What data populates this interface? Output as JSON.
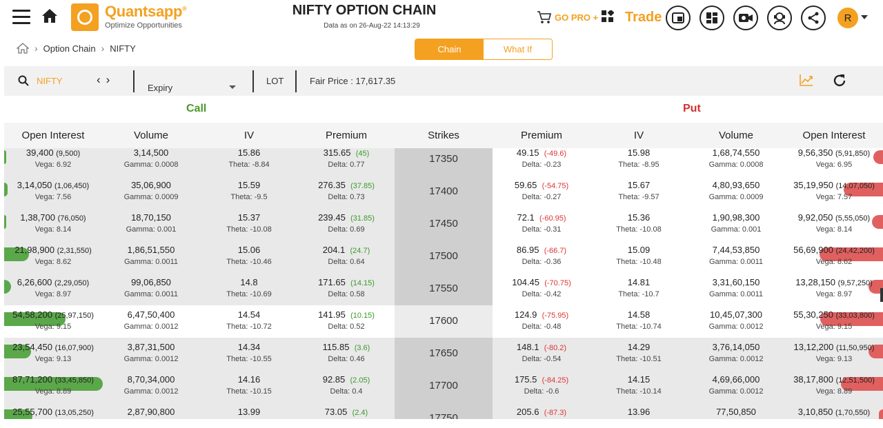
{
  "header": {
    "brand": "Quantsapp",
    "brand_reg": "®",
    "tagline": "Optimize Opportunities",
    "title": "NIFTY OPTION CHAIN",
    "data_as_of": "Data as on 26-Aug-22 14:13:29",
    "gopro": "GO PRO +",
    "trade": "Trade",
    "avatar_letter": "R"
  },
  "breadcrumb": {
    "items": [
      "Option Chain",
      "NIFTY"
    ]
  },
  "view_toggle": {
    "active": "Chain",
    "inactive": "What If"
  },
  "filters": {
    "symbol": "NIFTY",
    "expiry_label": "Expiry",
    "lot_label": "LOT",
    "fair_price": "Fair Price : 17,617.35"
  },
  "sides": {
    "call": "Call",
    "put": "Put"
  },
  "colors": {
    "accent": "#f4a020",
    "call_green": "#5aa84a",
    "put_red": "#e06060",
    "call_label": "#4a9a2a",
    "put_label": "#d33030"
  },
  "columns": {
    "c_oi": "Open Interest",
    "c_vol": "Volume",
    "c_iv": "IV",
    "c_prem": "Premium",
    "strikes": "Strikes",
    "p_prem": "Premium",
    "p_iv": "IV",
    "p_vol": "Volume",
    "p_oi": "Open Interest"
  },
  "rows": [
    {
      "strike": "17350",
      "atm": false,
      "c_oi": "39,400",
      "c_oi_chg": "(9,500)",
      "c_vega": "Vega: 6.92",
      "c_vol": "3,14,500",
      "c_gamma": "Gamma: 0.0008",
      "c_iv": "15.86",
      "c_theta": "Theta: -8.84",
      "c_prem": "315.65",
      "c_prem_chg": "(45)",
      "c_delta": "Delta: 0.77",
      "c_bar": 0.005,
      "p_prem": "49.15",
      "p_prem_chg": "(-49.6)",
      "p_delta": "Delta: -0.23",
      "p_iv": "15.98",
      "p_theta": "Theta: -8.95",
      "p_vol": "1,68,74,550",
      "p_gamma": "Gamma: 0.0008",
      "p_oi": "9,56,350",
      "p_oi_chg": "(5,91,850)",
      "p_vega": "Vega: 6.95",
      "p_bar": 0.1
    },
    {
      "strike": "17400",
      "atm": false,
      "c_oi": "3,14,050",
      "c_oi_chg": "(1,06,450)",
      "c_vega": "Vega: 7.56",
      "c_vol": "35,06,900",
      "c_gamma": "Gamma: 0.0009",
      "c_iv": "15.59",
      "c_theta": "Theta: -9.5",
      "c_prem": "276.35",
      "c_prem_chg": "(37.85)",
      "c_delta": "Delta: 0.73",
      "c_bar": 0.035,
      "p_prem": "59.65",
      "p_prem_chg": "(-54.75)",
      "p_delta": "Delta: -0.27",
      "p_iv": "15.67",
      "p_theta": "Theta: -9.57",
      "p_vol": "4,80,93,650",
      "p_gamma": "Gamma: 0.0009",
      "p_oi": "35,19,950",
      "p_oi_chg": "(14,07,050)",
      "p_vega": "Vega: 7.57",
      "p_bar": 0.4
    },
    {
      "strike": "17450",
      "atm": false,
      "c_oi": "1,38,700",
      "c_oi_chg": "(76,050)",
      "c_vega": "Vega: 8.14",
      "c_vol": "18,70,150",
      "c_gamma": "Gamma: 0.001",
      "c_iv": "15.37",
      "c_theta": "Theta: -10.08",
      "c_prem": "239.45",
      "c_prem_chg": "(31.85)",
      "c_delta": "Delta: 0.69",
      "c_bar": 0.015,
      "p_prem": "72.1",
      "p_prem_chg": "(-60.95)",
      "p_delta": "Delta: -0.31",
      "p_iv": "15.36",
      "p_theta": "Theta: -10.08",
      "p_vol": "1,90,98,300",
      "p_gamma": "Gamma: 0.001",
      "p_oi": "9,92,050",
      "p_oi_chg": "(5,55,050)",
      "p_vega": "Vega: 8.14",
      "p_bar": 0.11
    },
    {
      "strike": "17500",
      "atm": false,
      "c_oi": "21,98,900",
      "c_oi_chg": "(2,31,550)",
      "c_vega": "Vega: 8.62",
      "c_vol": "1,86,51,550",
      "c_gamma": "Gamma: 0.0011",
      "c_iv": "15.06",
      "c_theta": "Theta: -10.46",
      "c_prem": "204.1",
      "c_prem_chg": "(24.7)",
      "c_delta": "Delta: 0.64",
      "c_bar": 0.25,
      "p_prem": "86.95",
      "p_prem_chg": "(-66.7)",
      "p_delta": "Delta: -0.36",
      "p_iv": "15.09",
      "p_theta": "Theta: -10.48",
      "p_vol": "7,44,53,850",
      "p_gamma": "Gamma: 0.0011",
      "p_oi": "56,69,900",
      "p_oi_chg": "(24,42,200)",
      "p_vega": "Vega: 8.62",
      "p_bar": 0.65
    },
    {
      "strike": "17550",
      "atm": false,
      "c_oi": "6,26,600",
      "c_oi_chg": "(2,29,050)",
      "c_vega": "Vega: 8.97",
      "c_vol": "99,06,850",
      "c_gamma": "Gamma: 0.0011",
      "c_iv": "14.8",
      "c_theta": "Theta: -10.69",
      "c_prem": "171.65",
      "c_prem_chg": "(14.15)",
      "c_delta": "Delta: 0.58",
      "c_bar": 0.07,
      "p_prem": "104.45",
      "p_prem_chg": "(-70.75)",
      "p_delta": "Delta: -0.42",
      "p_iv": "14.81",
      "p_theta": "Theta: -10.7",
      "p_vol": "3,31,60,150",
      "p_gamma": "Gamma: 0.0011",
      "p_oi": "13,28,150",
      "p_oi_chg": "(9,57,250)",
      "p_vega": "Vega: 8.97",
      "p_bar": 0.15
    },
    {
      "strike": "17600",
      "atm": true,
      "c_oi": "54,58,200",
      "c_oi_chg": "(25,97,150)",
      "c_vega": "Vega: 9.15",
      "c_vol": "6,47,50,400",
      "c_gamma": "Gamma: 0.0012",
      "c_iv": "14.54",
      "c_theta": "Theta: -10.72",
      "c_prem": "141.95",
      "c_prem_chg": "(10.15)",
      "c_delta": "Delta: 0.52",
      "c_bar": 0.62,
      "p_prem": "124.9",
      "p_prem_chg": "(-75.95)",
      "p_delta": "Delta: -0.48",
      "p_iv": "14.58",
      "p_theta": "Theta: -10.74",
      "p_vol": "10,45,07,300",
      "p_gamma": "Gamma: 0.0012",
      "p_oi": "55,30,250",
      "p_oi_chg": "(33,03,800)",
      "p_vega": "Vega: 9.15",
      "p_bar": 0.64
    },
    {
      "strike": "17650",
      "atm": false,
      "c_oi": "23,54,450",
      "c_oi_chg": "(16,07,900)",
      "c_vega": "Vega: 9.13",
      "c_vol": "3,87,31,500",
      "c_gamma": "Gamma: 0.0012",
      "c_iv": "14.34",
      "c_theta": "Theta: -10.55",
      "c_prem": "115.85",
      "c_prem_chg": "(3.6)",
      "c_delta": "Delta: 0.46",
      "c_bar": 0.27,
      "p_prem": "148.1",
      "p_prem_chg": "(-80.2)",
      "p_delta": "Delta: -0.54",
      "p_iv": "14.29",
      "p_theta": "Theta: -10.51",
      "p_vol": "3,76,14,050",
      "p_gamma": "Gamma: 0.0012",
      "p_oi": "13,12,200",
      "p_oi_chg": "(11,50,950)",
      "p_vega": "Vega: 9.13",
      "p_bar": 0.15
    },
    {
      "strike": "17700",
      "atm": false,
      "c_oi": "87,71,200",
      "c_oi_chg": "(33,45,850)",
      "c_vega": "Vega: 8.89",
      "c_vol": "8,70,34,000",
      "c_gamma": "Gamma: 0.0012",
      "c_iv": "14.16",
      "c_theta": "Theta: -10.15",
      "c_prem": "92.85",
      "c_prem_chg": "(2.05)",
      "c_delta": "Delta: 0.4",
      "c_bar": 1.0,
      "p_prem": "175.5",
      "p_prem_chg": "(-84.25)",
      "p_delta": "Delta: -0.6",
      "p_iv": "14.15",
      "p_theta": "Theta: -10.14",
      "p_vol": "4,69,66,000",
      "p_gamma": "Gamma: 0.0012",
      "p_oi": "38,17,800",
      "p_oi_chg": "(12,51,500)",
      "p_vega": "Vega: 8.89",
      "p_bar": 0.43
    },
    {
      "strike": "17750",
      "atm": false,
      "c_oi": "25,55,700",
      "c_oi_chg": "(13,05,250)",
      "c_vega": "",
      "c_vol": "2,87,90,800",
      "c_gamma": "",
      "c_iv": "13.99",
      "c_theta": "",
      "c_prem": "73.05",
      "c_prem_chg": "(2.4)",
      "c_delta": "",
      "c_bar": 0.29,
      "p_prem": "205.6",
      "p_prem_chg": "(-87.3)",
      "p_delta": "",
      "p_iv": "13.96",
      "p_theta": "",
      "p_vol": "77,50,850",
      "p_gamma": "",
      "p_oi": "3,10,850",
      "p_oi_chg": "(1,70,550)",
      "p_vega": "",
      "p_bar": 0.02
    }
  ]
}
